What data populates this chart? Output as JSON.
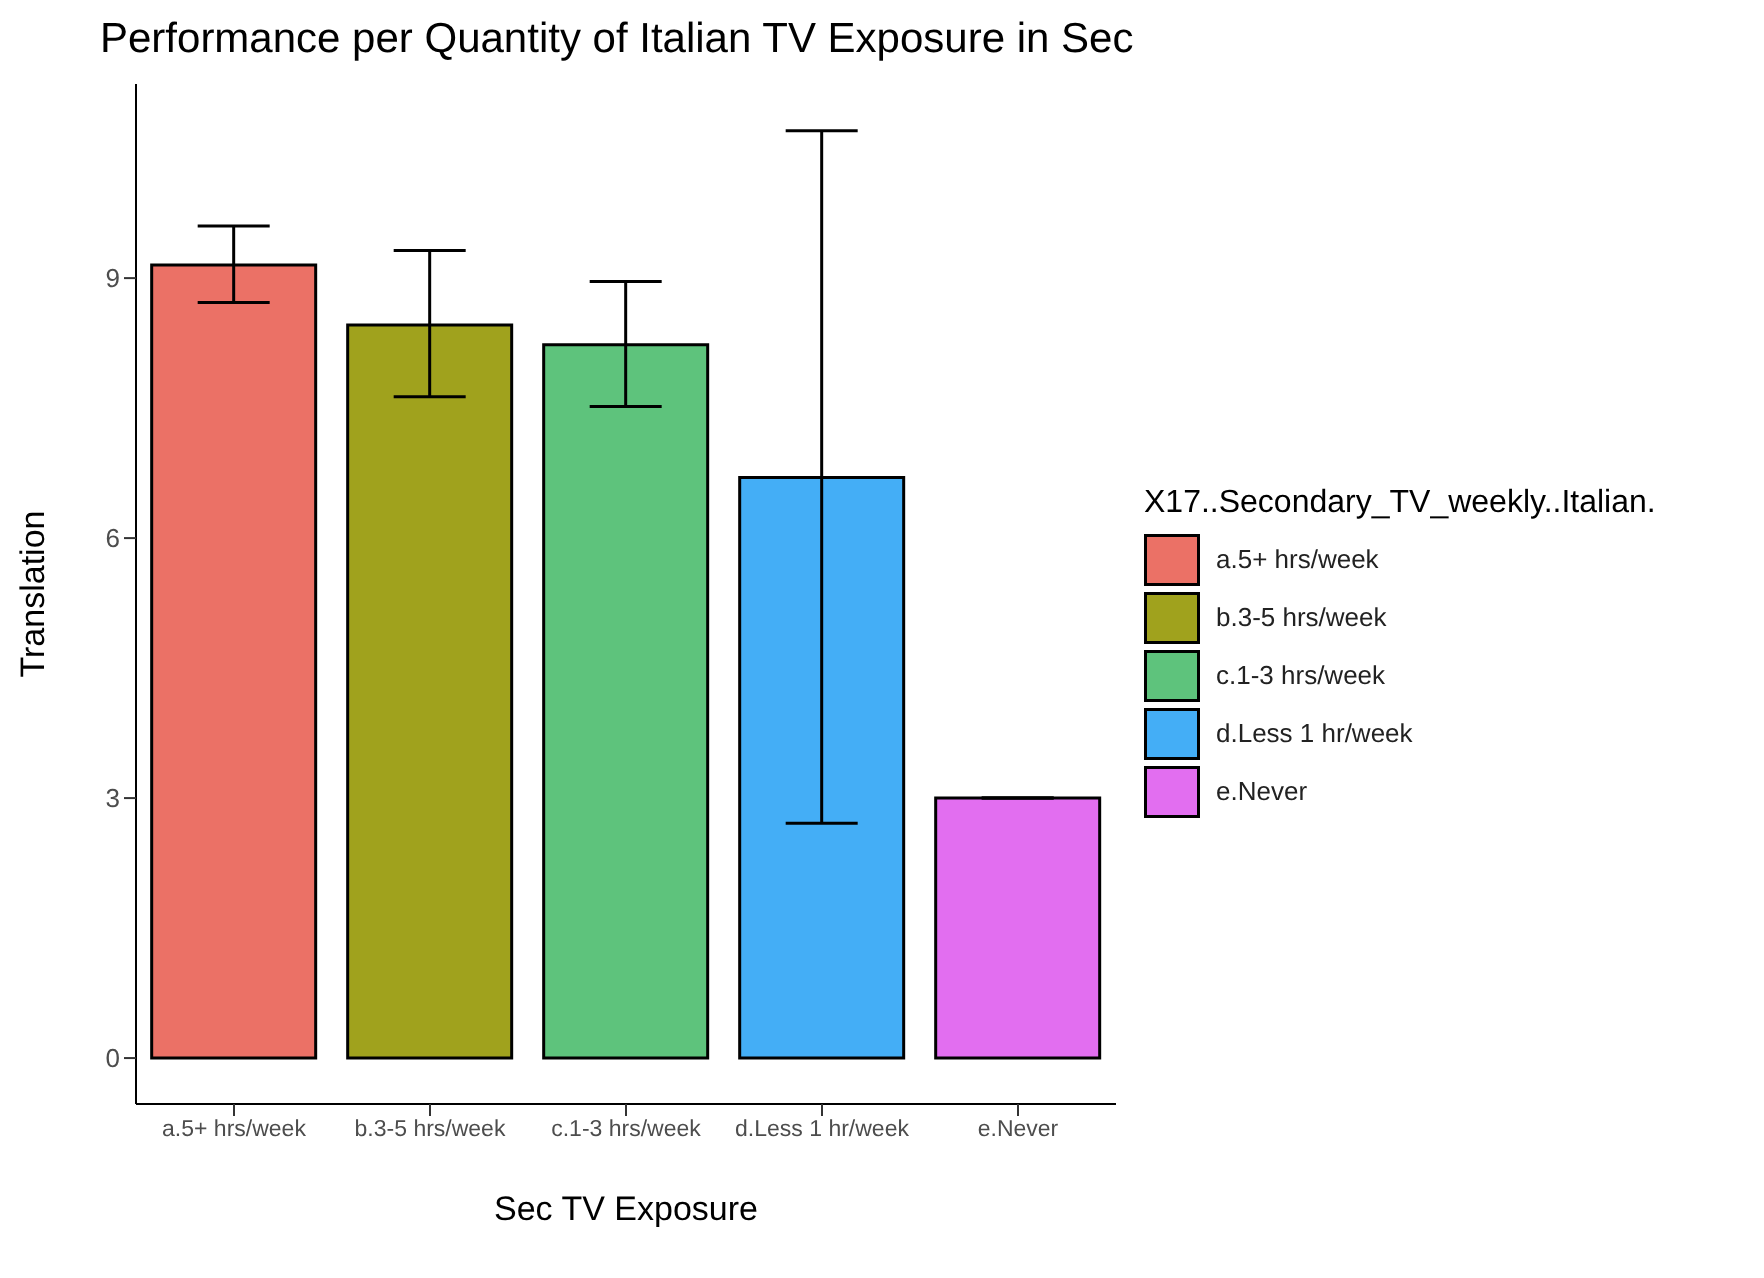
{
  "chart_data": {
    "type": "bar",
    "title": "Performance per Quantity of Italian TV Exposure in Sec",
    "xlabel": "Sec TV Exposure",
    "ylabel": "Translation",
    "legend_title": "X17..Secondary_TV_weekly..Italian.",
    "categories": [
      "a.5+ hrs/week",
      "b.3-5 hrs/week",
      "c.1-3 hrs/week",
      "d.Less 1 hr/week",
      "e.Never"
    ],
    "series": [
      {
        "name": "a.5+ hrs/week",
        "color": "#eb7166",
        "values": [
          9.15,
          null,
          null,
          null,
          null
        ],
        "errors": [
          [
            8.72,
            9.6
          ],
          null,
          null,
          null,
          null
        ]
      },
      {
        "name": "b.3-5 hrs/week",
        "color": "#a0a21d",
        "values": [
          null,
          8.46,
          null,
          null,
          null
        ],
        "errors": [
          null,
          [
            7.63,
            9.32
          ],
          null,
          null,
          null
        ]
      },
      {
        "name": "c.1-3 hrs/week",
        "color": "#5ec37c",
        "values": [
          null,
          null,
          8.23,
          null,
          null
        ],
        "errors": [
          null,
          null,
          [
            7.52,
            8.96
          ],
          null,
          null
        ]
      },
      {
        "name": "d.Less 1 hr/week",
        "color": "#44aef6",
        "values": [
          null,
          null,
          null,
          6.7,
          null
        ],
        "errors": [
          null,
          null,
          null,
          [
            2.71,
            10.7
          ],
          null
        ]
      },
      {
        "name": "e.Never",
        "color": "#e26ef0",
        "values": [
          null,
          null,
          null,
          null,
          3.0
        ],
        "errors": [
          null,
          null,
          null,
          null,
          [
            3.0,
            3.0
          ]
        ]
      }
    ],
    "ylim": [
      -0.53,
      11.24
    ],
    "yticks": [
      0,
      3,
      6,
      9
    ],
    "grid": false,
    "legend": "right"
  }
}
